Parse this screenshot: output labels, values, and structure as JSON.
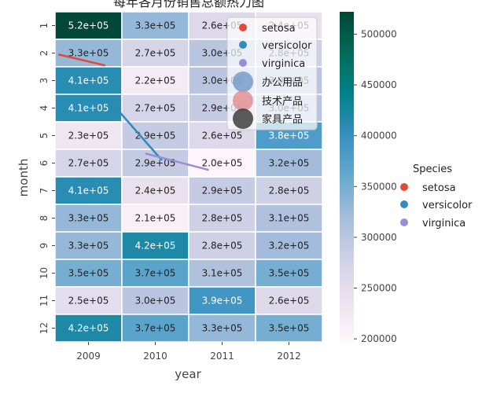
{
  "chart_data": {
    "type": "heatmap",
    "title": "每年各月份销售总额热力图",
    "xlabel": "year",
    "ylabel": "month",
    "x_categories": [
      "2009",
      "2010",
      "2011",
      "2012"
    ],
    "y_categories": [
      "1",
      "2",
      "3",
      "4",
      "5",
      "6",
      "7",
      "8",
      "9",
      "10",
      "11",
      "12"
    ],
    "values": [
      [
        520000,
        330000,
        260000,
        240000
      ],
      [
        330000,
        270000,
        300000,
        280000
      ],
      [
        410000,
        220000,
        300000,
        300000
      ],
      [
        410000,
        270000,
        290000,
        300000
      ],
      [
        230000,
        290000,
        260000,
        380000
      ],
      [
        270000,
        290000,
        200000,
        320000
      ],
      [
        410000,
        240000,
        290000,
        280000
      ],
      [
        330000,
        210000,
        280000,
        310000
      ],
      [
        330000,
        420000,
        280000,
        320000
      ],
      [
        350000,
        370000,
        310000,
        350000
      ],
      [
        250000,
        300000,
        390000,
        260000
      ],
      [
        420000,
        370000,
        330000,
        350000
      ]
    ],
    "labels": [
      [
        "5.2e+05",
        "3.3e+05",
        "2.6e+05",
        "2.4e+05"
      ],
      [
        "3.3e+05",
        "2.7e+05",
        "3.0e+05",
        "2.8e+05"
      ],
      [
        "4.1e+05",
        "2.2e+05",
        "3.0e+05",
        "3.0e+05"
      ],
      [
        "4.1e+05",
        "2.7e+05",
        "2.9e+05",
        "3.0e+05"
      ],
      [
        "2.3e+05",
        "2.9e+05",
        "2.6e+05",
        "3.8e+05"
      ],
      [
        "2.7e+05",
        "2.9e+05",
        "2.0e+05",
        "3.2e+05"
      ],
      [
        "4.1e+05",
        "2.4e+05",
        "2.9e+05",
        "2.8e+05"
      ],
      [
        "3.3e+05",
        "2.1e+05",
        "2.8e+05",
        "3.1e+05"
      ],
      [
        "3.3e+05",
        "4.2e+05",
        "2.8e+05",
        "3.2e+05"
      ],
      [
        "3.5e+05",
        "3.7e+05",
        "3.1e+05",
        "3.5e+05"
      ],
      [
        "2.5e+05",
        "3.0e+05",
        "3.9e+05",
        "2.6e+05"
      ],
      [
        "4.2e+05",
        "3.7e+05",
        "3.3e+05",
        "3.5e+05"
      ]
    ],
    "colorbar": {
      "min": 197000,
      "max": 522000,
      "ticks": [
        200000,
        250000,
        300000,
        350000,
        400000,
        450000,
        500000
      ],
      "tick_labels": [
        "200000",
        "250000",
        "300000",
        "350000",
        "400000",
        "450000",
        "500000"
      ],
      "colormap": "PuBuGn"
    },
    "overlay_lines": [
      {
        "name": "setosa",
        "color": "#e24a33",
        "points": [
          [
            0.05,
            1.55
          ],
          [
            0.75,
            1.95
          ]
        ]
      },
      {
        "name": "versicolor",
        "color": "#348abd",
        "points": [
          [
            0.95,
            3.6
          ],
          [
            1.6,
            5.4
          ]
        ]
      },
      {
        "name": "virginica",
        "color": "#988ed5",
        "points": [
          [
            1.35,
            5.15
          ],
          [
            2.3,
            5.75
          ]
        ]
      }
    ],
    "legend_inner": {
      "placement": "top-right",
      "entries": [
        {
          "label": "setosa",
          "color": "#e24a33",
          "kind": "dot"
        },
        {
          "label": "versicolor",
          "color": "#348abd",
          "kind": "dot"
        },
        {
          "label": "virginica",
          "color": "#988ed5",
          "kind": "dot"
        },
        {
          "label": "办公用品",
          "color": "#6f95c9",
          "kind": "circle"
        },
        {
          "label": "技术产品",
          "color": "#e08b8d",
          "kind": "circle"
        },
        {
          "label": "家具产品",
          "color": "#333333",
          "kind": "circle"
        }
      ]
    },
    "legend_outer": {
      "placement": "right",
      "title": "Species",
      "entries": [
        {
          "label": "setosa",
          "color": "#e24a33"
        },
        {
          "label": "versicolor",
          "color": "#348abd"
        },
        {
          "label": "virginica",
          "color": "#988ed5"
        }
      ]
    },
    "grid": false
  }
}
